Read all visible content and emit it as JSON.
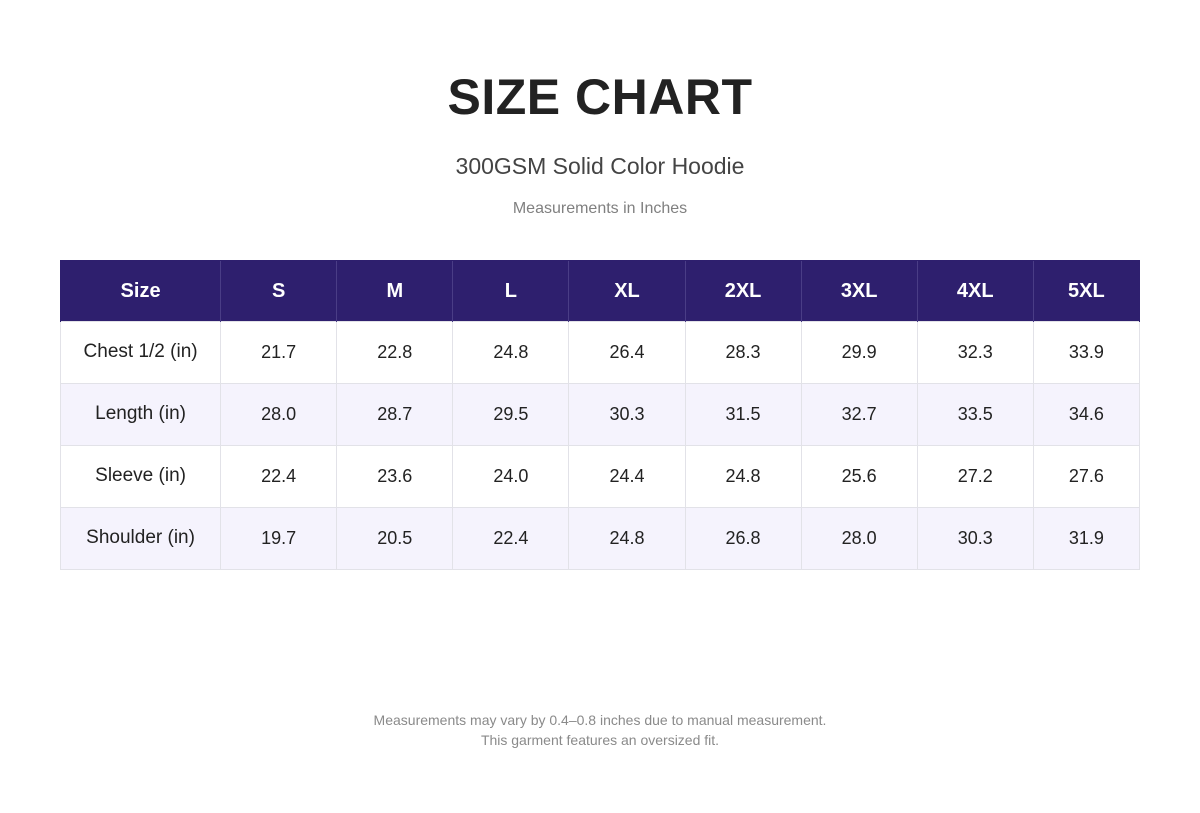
{
  "header": {
    "title": "SIZE CHART",
    "subtitle": "300GSM Solid Color Hoodie",
    "units_note": "Measurements in Inches"
  },
  "table": {
    "header_label": "Size",
    "sizes": [
      "S",
      "M",
      "L",
      "XL",
      "2XL",
      "3XL",
      "4XL",
      "5XL"
    ],
    "rows": [
      {
        "label": "Chest 1/2 (in)",
        "values": [
          "21.7",
          "22.8",
          "24.8",
          "26.4",
          "28.3",
          "29.9",
          "32.3",
          "33.9"
        ]
      },
      {
        "label": "Length (in)",
        "values": [
          "28.0",
          "28.7",
          "29.5",
          "30.3",
          "31.5",
          "32.7",
          "33.5",
          "34.6"
        ]
      },
      {
        "label": "Sleeve (in)",
        "values": [
          "22.4",
          "23.6",
          "24.0",
          "24.4",
          "24.8",
          "25.6",
          "27.2",
          "27.6"
        ]
      },
      {
        "label": "Shoulder (in)",
        "values": [
          "19.7",
          "20.5",
          "22.4",
          "24.8",
          "26.8",
          "28.0",
          "30.3",
          "31.9"
        ]
      }
    ]
  },
  "footer": {
    "line1": "Measurements may vary by 0.4–0.8 inches due to manual measurement.",
    "line2": "This garment features an oversized fit."
  },
  "colors": {
    "header_bg": "#2e1f6e",
    "header_text": "#ffffff",
    "alt_row_bg": "#f5f3fd",
    "title_text": "#222222",
    "muted_text": "#808080"
  }
}
